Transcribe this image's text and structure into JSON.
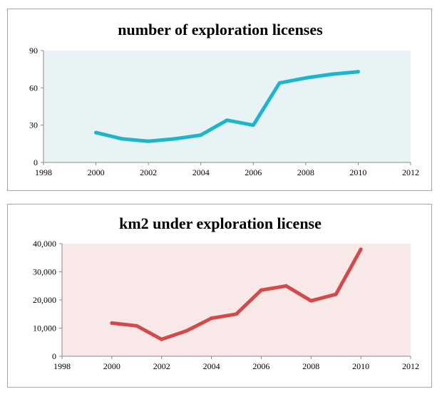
{
  "chart_data": [
    {
      "type": "line",
      "title": "number of exploration licenses",
      "xlabel": "",
      "ylabel": "",
      "xlim": [
        1998,
        2012
      ],
      "ylim": [
        0,
        90
      ],
      "x_ticks": [
        1998,
        2000,
        2002,
        2004,
        2006,
        2008,
        2010,
        2012
      ],
      "y_ticks": [
        0,
        30,
        60,
        90
      ],
      "x_tick_labels": [
        "1998",
        "2000",
        "2002",
        "2004",
        "2006",
        "2008",
        "2010",
        "2012"
      ],
      "y_tick_labels": [
        "0",
        "30",
        "60",
        "90"
      ],
      "x": [
        2000,
        2001,
        2002,
        2003,
        2004,
        2005,
        2006,
        2007,
        2008,
        2009,
        2010
      ],
      "series": [
        {
          "values": [
            24,
            19,
            17,
            19,
            22,
            34,
            30,
            64,
            68,
            71,
            73
          ],
          "color": "#1cb5cc"
        }
      ],
      "plot_background": "#e8f3f5",
      "grid": false,
      "legend": "none"
    },
    {
      "type": "line",
      "title": "km2 under exploration license",
      "xlabel": "",
      "ylabel": "",
      "xlim": [
        1998,
        2012
      ],
      "ylim": [
        0,
        40000
      ],
      "x_ticks": [
        1998,
        2000,
        2002,
        2004,
        2006,
        2008,
        2010,
        2012
      ],
      "y_ticks": [
        0,
        10000,
        20000,
        30000,
        40000
      ],
      "x_tick_labels": [
        "1998",
        "2000",
        "2002",
        "2004",
        "2006",
        "2008",
        "2010",
        "2012"
      ],
      "y_tick_labels": [
        "0",
        "10,000",
        "20,000",
        "30,000",
        "40,000"
      ],
      "x": [
        2000,
        2001,
        2002,
        2003,
        2004,
        2005,
        2006,
        2007,
        2008,
        2009,
        2010
      ],
      "series": [
        {
          "values": [
            11800,
            10800,
            6000,
            9000,
            13500,
            15000,
            23500,
            25000,
            19700,
            22000,
            38000
          ],
          "color": "#d44a4a"
        }
      ],
      "plot_background": "#f8e8e8",
      "grid": false,
      "legend": "none"
    }
  ]
}
